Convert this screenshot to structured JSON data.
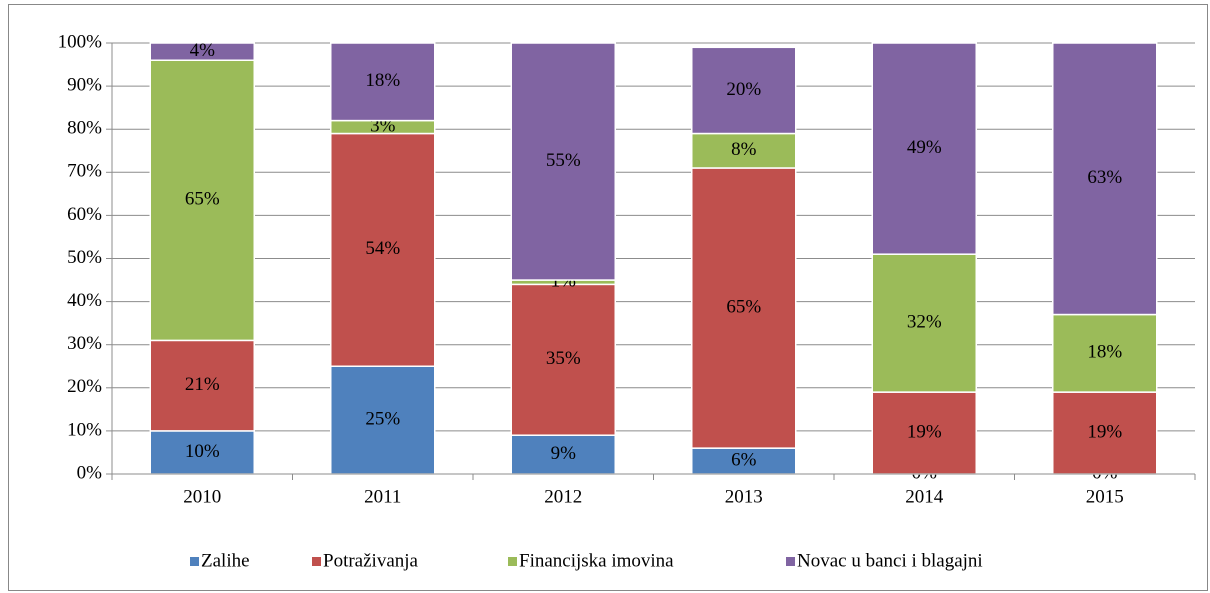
{
  "chart_data": {
    "type": "stacked_bar",
    "categories": [
      "2010",
      "2011",
      "2012",
      "2013",
      "2014",
      "2015"
    ],
    "series": [
      {
        "name": "Zalihe",
        "color": "#4f81bd",
        "values": [
          10,
          25,
          9,
          6,
          0,
          0
        ],
        "value_labels": [
          "10%",
          "25%",
          "9%",
          "6%",
          "0%",
          "0%"
        ]
      },
      {
        "name": "Potraživanja",
        "color": "#c0504d",
        "values": [
          21,
          54,
          35,
          65,
          19,
          19
        ],
        "value_labels": [
          "21%",
          "54%",
          "35%",
          "65%",
          "19%",
          "19%"
        ]
      },
      {
        "name": "Financijska imovina",
        "color": "#9bbb59",
        "values": [
          65,
          3,
          1,
          8,
          32,
          18
        ],
        "value_labels": [
          "65%",
          "3%",
          "1%",
          "8%",
          "32%",
          "18%"
        ]
      },
      {
        "name": "Novac u banci i blagajni",
        "color": "#8064a2",
        "values": [
          4,
          18,
          55,
          20,
          49,
          63
        ],
        "value_labels": [
          "4%",
          "18%",
          "55%",
          "20%",
          "49%",
          "63%"
        ]
      }
    ],
    "ylim": [
      0,
      100
    ],
    "yticks": [
      {
        "value": 0,
        "label": "0%"
      },
      {
        "value": 10,
        "label": "10%"
      },
      {
        "value": 20,
        "label": "20%"
      },
      {
        "value": 30,
        "label": "30%"
      },
      {
        "value": 40,
        "label": "40%"
      },
      {
        "value": 50,
        "label": "50%"
      },
      {
        "value": 60,
        "label": "60%"
      },
      {
        "value": 70,
        "label": "70%"
      },
      {
        "value": 80,
        "label": "80%"
      },
      {
        "value": 90,
        "label": "90%"
      },
      {
        "value": 100,
        "label": "100%"
      }
    ],
    "grid": true,
    "legend": "bottom"
  }
}
